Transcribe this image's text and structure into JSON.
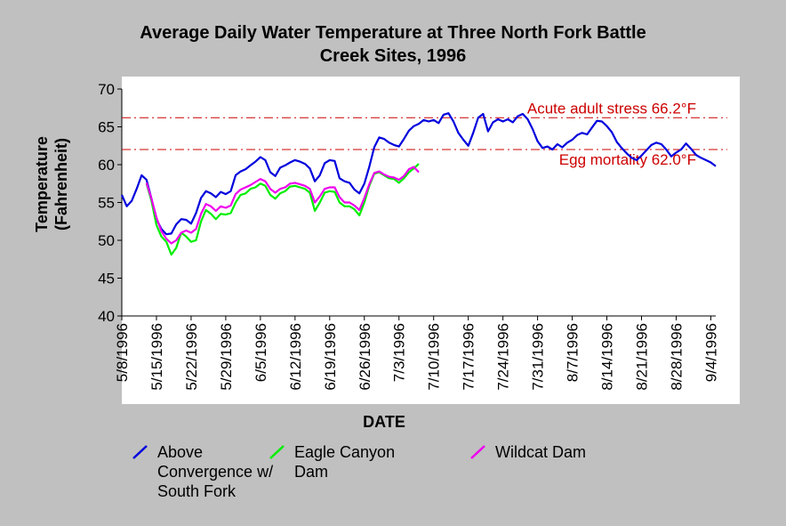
{
  "title_line1": "Average Daily Water Temperature at Three North Fork Battle",
  "title_line2": "Creek Sites, 1996",
  "chart_data": {
    "type": "line",
    "title": "Average Daily Water Temperature at Three North Fork Battle Creek Sites, 1996",
    "xlabel": "DATE",
    "ylabel_line1": "Temperature",
    "ylabel_line2": "(Fahrenheit)",
    "ylim": [
      40,
      70
    ],
    "yticks": [
      40,
      45,
      50,
      55,
      60,
      65,
      70
    ],
    "x_start": "5/8/1996",
    "x_end": "9/5/1996",
    "xticks": [
      "5/8/1996",
      "5/15/1996",
      "5/22/1996",
      "5/29/1996",
      "6/5/1996",
      "6/12/1996",
      "6/19/1996",
      "6/26/1996",
      "7/3/1996",
      "7/10/1996",
      "7/17/1996",
      "7/24/1996",
      "7/31/1996",
      "8/7/1996",
      "8/14/1996",
      "8/21/1996",
      "8/28/1996",
      "9/4/1996"
    ],
    "grid": false,
    "legend_position": "bottom",
    "reference_lines": [
      {
        "label": "Acute adult stress 66.2°F",
        "value": 66.2,
        "color": "#cc0000"
      },
      {
        "label": "Egg mortality 62.0°F",
        "value": 62.0,
        "color": "#cc0000"
      }
    ],
    "series": [
      {
        "name": "Above Convergence w/ South Fork",
        "legend_lines": [
          "Above",
          "Convergence w/",
          "South Fork"
        ],
        "color": "#0000dd",
        "x": [
          "5/8/1996",
          "5/9/1996",
          "5/10/1996",
          "5/11/1996",
          "5/12/1996",
          "5/13/1996",
          "5/14/1996",
          "5/15/1996",
          "5/16/1996",
          "5/17/1996",
          "5/18/1996",
          "5/19/1996",
          "5/20/1996",
          "5/21/1996",
          "5/22/1996",
          "5/23/1996",
          "5/24/1996",
          "5/25/1996",
          "5/26/1996",
          "5/27/1996",
          "5/28/1996",
          "5/29/1996",
          "5/30/1996",
          "5/31/1996",
          "6/1/1996",
          "6/2/1996",
          "6/3/1996",
          "6/4/1996",
          "6/5/1996",
          "6/6/1996",
          "6/7/1996",
          "6/8/1996",
          "6/9/1996",
          "6/10/1996",
          "6/11/1996",
          "6/12/1996",
          "6/13/1996",
          "6/14/1996",
          "6/15/1996",
          "6/16/1996",
          "6/17/1996",
          "6/18/1996",
          "6/19/1996",
          "6/20/1996",
          "6/21/1996",
          "6/22/1996",
          "6/23/1996",
          "6/24/1996",
          "6/25/1996",
          "6/26/1996",
          "6/27/1996",
          "6/28/1996",
          "6/29/1996",
          "6/30/1996",
          "7/1/1996",
          "7/2/1996",
          "7/3/1996",
          "7/4/1996",
          "7/5/1996",
          "7/6/1996",
          "7/7/1996",
          "7/8/1996",
          "7/9/1996",
          "7/10/1996",
          "7/11/1996",
          "7/12/1996",
          "7/13/1996",
          "7/14/1996",
          "7/15/1996",
          "7/16/1996",
          "7/17/1996",
          "7/18/1996",
          "7/19/1996",
          "7/20/1996",
          "7/21/1996",
          "7/22/1996",
          "7/23/1996",
          "7/24/1996",
          "7/25/1996",
          "7/26/1996",
          "7/27/1996",
          "7/28/1996",
          "7/29/1996",
          "7/30/1996",
          "7/31/1996",
          "8/1/1996",
          "8/2/1996",
          "8/3/1996",
          "8/4/1996",
          "8/5/1996",
          "8/6/1996",
          "8/7/1996",
          "8/8/1996",
          "8/9/1996",
          "8/10/1996",
          "8/11/1996",
          "8/12/1996",
          "8/13/1996",
          "8/14/1996",
          "8/15/1996",
          "8/16/1996",
          "8/17/1996",
          "8/18/1996",
          "8/19/1996",
          "8/20/1996",
          "8/21/1996",
          "8/22/1996",
          "8/23/1996",
          "8/24/1996",
          "8/25/1996",
          "8/26/1996",
          "8/27/1996",
          "8/28/1996",
          "8/29/1996",
          "8/30/1996",
          "8/31/1996",
          "9/1/1996",
          "9/2/1996",
          "9/3/1996",
          "9/4/1996",
          "9/5/1996"
        ],
        "values": [
          56.0,
          54.5,
          55.2,
          56.8,
          58.6,
          58.0,
          55.5,
          52.8,
          51.5,
          50.8,
          50.9,
          52.1,
          52.8,
          52.7,
          52.2,
          53.6,
          55.6,
          56.5,
          56.2,
          55.7,
          56.4,
          56.1,
          56.5,
          58.6,
          59.1,
          59.4,
          59.9,
          60.4,
          61.0,
          60.6,
          59.0,
          58.5,
          59.6,
          59.9,
          60.3,
          60.6,
          60.4,
          60.1,
          59.5,
          57.8,
          58.6,
          60.2,
          60.6,
          60.5,
          58.2,
          57.8,
          57.6,
          56.7,
          56.2,
          57.5,
          59.7,
          62.3,
          63.6,
          63.4,
          62.9,
          62.6,
          62.4,
          63.4,
          64.5,
          65.1,
          65.4,
          65.9,
          65.7,
          65.9,
          65.5,
          66.6,
          66.8,
          65.7,
          64.2,
          63.3,
          62.5,
          64.2,
          66.2,
          66.7,
          64.4,
          65.6,
          66.0,
          65.7,
          66.0,
          65.6,
          66.4,
          66.7,
          66.0,
          64.7,
          63.1,
          62.2,
          62.4,
          62.0,
          62.7,
          62.3,
          62.9,
          63.3,
          63.9,
          64.2,
          64.0,
          64.9,
          65.8,
          65.7,
          65.1,
          64.3,
          63.0,
          62.2,
          61.5,
          60.9,
          60.6,
          61.2,
          61.9,
          62.6,
          62.9,
          62.7,
          62.0,
          61.1,
          61.6,
          62.0,
          62.8,
          62.1,
          61.3,
          60.9,
          60.6,
          60.3,
          59.8
        ]
      },
      {
        "name": "Eagle Canyon Dam",
        "legend_lines": [
          "Eagle Canyon",
          "Dam"
        ],
        "color": "#00ee00",
        "x": [
          "5/8/1996",
          "5/9/1996",
          "5/10/1996",
          "5/11/1996",
          "5/12/1996",
          "5/13/1996",
          "5/14/1996",
          "5/15/1996",
          "5/16/1996",
          "5/17/1996",
          "5/18/1996",
          "5/19/1996",
          "5/20/1996",
          "5/21/1996",
          "5/22/1996",
          "5/23/1996",
          "5/24/1996",
          "5/25/1996",
          "5/26/1996",
          "5/27/1996",
          "5/28/1996",
          "5/29/1996",
          "5/30/1996",
          "5/31/1996",
          "6/1/1996",
          "6/2/1996",
          "6/3/1996",
          "6/4/1996",
          "6/5/1996",
          "6/6/1996",
          "6/7/1996",
          "6/8/1996",
          "6/9/1996",
          "6/10/1996",
          "6/11/1996",
          "6/12/1996",
          "6/13/1996",
          "6/14/1996",
          "6/15/1996",
          "6/16/1996",
          "6/17/1996",
          "6/18/1996",
          "6/19/1996",
          "6/20/1996",
          "6/21/1996",
          "6/22/1996",
          "6/23/1996",
          "6/24/1996",
          "6/25/1996",
          "6/26/1996",
          "6/27/1996",
          "6/28/1996",
          "6/29/1996",
          "6/30/1996",
          "7/1/1996",
          "7/2/1996",
          "7/3/1996",
          "7/4/1996",
          "7/5/1996",
          "7/6/1996",
          "7/7/1996"
        ],
        "values": [
          null,
          null,
          null,
          null,
          null,
          57.5,
          55.2,
          52.0,
          50.5,
          49.8,
          48.1,
          49.0,
          51.0,
          50.5,
          49.8,
          50.0,
          52.5,
          54.0,
          53.5,
          52.8,
          53.5,
          53.4,
          53.6,
          55.0,
          56.0,
          56.2,
          56.8,
          57.0,
          57.5,
          57.2,
          56.0,
          55.5,
          56.2,
          56.5,
          57.1,
          57.2,
          57.0,
          56.8,
          56.3,
          53.9,
          55.0,
          56.3,
          56.5,
          56.4,
          55.0,
          54.5,
          54.5,
          54.1,
          53.3,
          55.0,
          57.2,
          58.8,
          59.0,
          58.6,
          58.2,
          58.1,
          57.6,
          58.2,
          59.0,
          59.5,
          60.1
        ]
      },
      {
        "name": "Wildcat Dam",
        "legend_lines": [
          "Wildcat Dam"
        ],
        "color": "#ee00ee",
        "x": [
          "5/8/1996",
          "5/9/1996",
          "5/10/1996",
          "5/11/1996",
          "5/12/1996",
          "5/13/1996",
          "5/14/1996",
          "5/15/1996",
          "5/16/1996",
          "5/17/1996",
          "5/18/1996",
          "5/19/1996",
          "5/20/1996",
          "5/21/1996",
          "5/22/1996",
          "5/23/1996",
          "5/24/1996",
          "5/25/1996",
          "5/26/1996",
          "5/27/1996",
          "5/28/1996",
          "5/29/1996",
          "5/30/1996",
          "5/31/1996",
          "6/1/1996",
          "6/2/1996",
          "6/3/1996",
          "6/4/1996",
          "6/5/1996",
          "6/6/1996",
          "6/7/1996",
          "6/8/1996",
          "6/9/1996",
          "6/10/1996",
          "6/11/1996",
          "6/12/1996",
          "6/13/1996",
          "6/14/1996",
          "6/15/1996",
          "6/16/1996",
          "6/17/1996",
          "6/18/1996",
          "6/19/1996",
          "6/20/1996",
          "6/21/1996",
          "6/22/1996",
          "6/23/1996",
          "6/24/1996",
          "6/25/1996",
          "6/26/1996",
          "6/27/1996",
          "6/28/1996",
          "6/29/1996",
          "6/30/1996",
          "7/1/1996",
          "7/2/1996",
          "7/3/1996",
          "7/4/1996",
          "7/5/1996",
          "7/6/1996",
          "7/7/1996"
        ],
        "values": [
          null,
          null,
          null,
          null,
          null,
          57.6,
          55.5,
          53.0,
          51.2,
          50.2,
          49.6,
          50.0,
          51.0,
          51.3,
          51.0,
          51.5,
          53.5,
          54.8,
          54.5,
          53.9,
          54.5,
          54.3,
          54.6,
          56.1,
          56.7,
          57.0,
          57.3,
          57.7,
          58.1,
          57.8,
          56.8,
          56.3,
          56.8,
          57.0,
          57.5,
          57.6,
          57.4,
          57.2,
          56.8,
          55.0,
          55.8,
          56.8,
          57.0,
          57.0,
          55.7,
          55.0,
          55.0,
          54.6,
          54.0,
          55.6,
          57.4,
          58.9,
          59.1,
          58.7,
          58.4,
          58.3,
          58.0,
          58.5,
          59.4,
          59.7,
          59.0
        ]
      }
    ]
  }
}
